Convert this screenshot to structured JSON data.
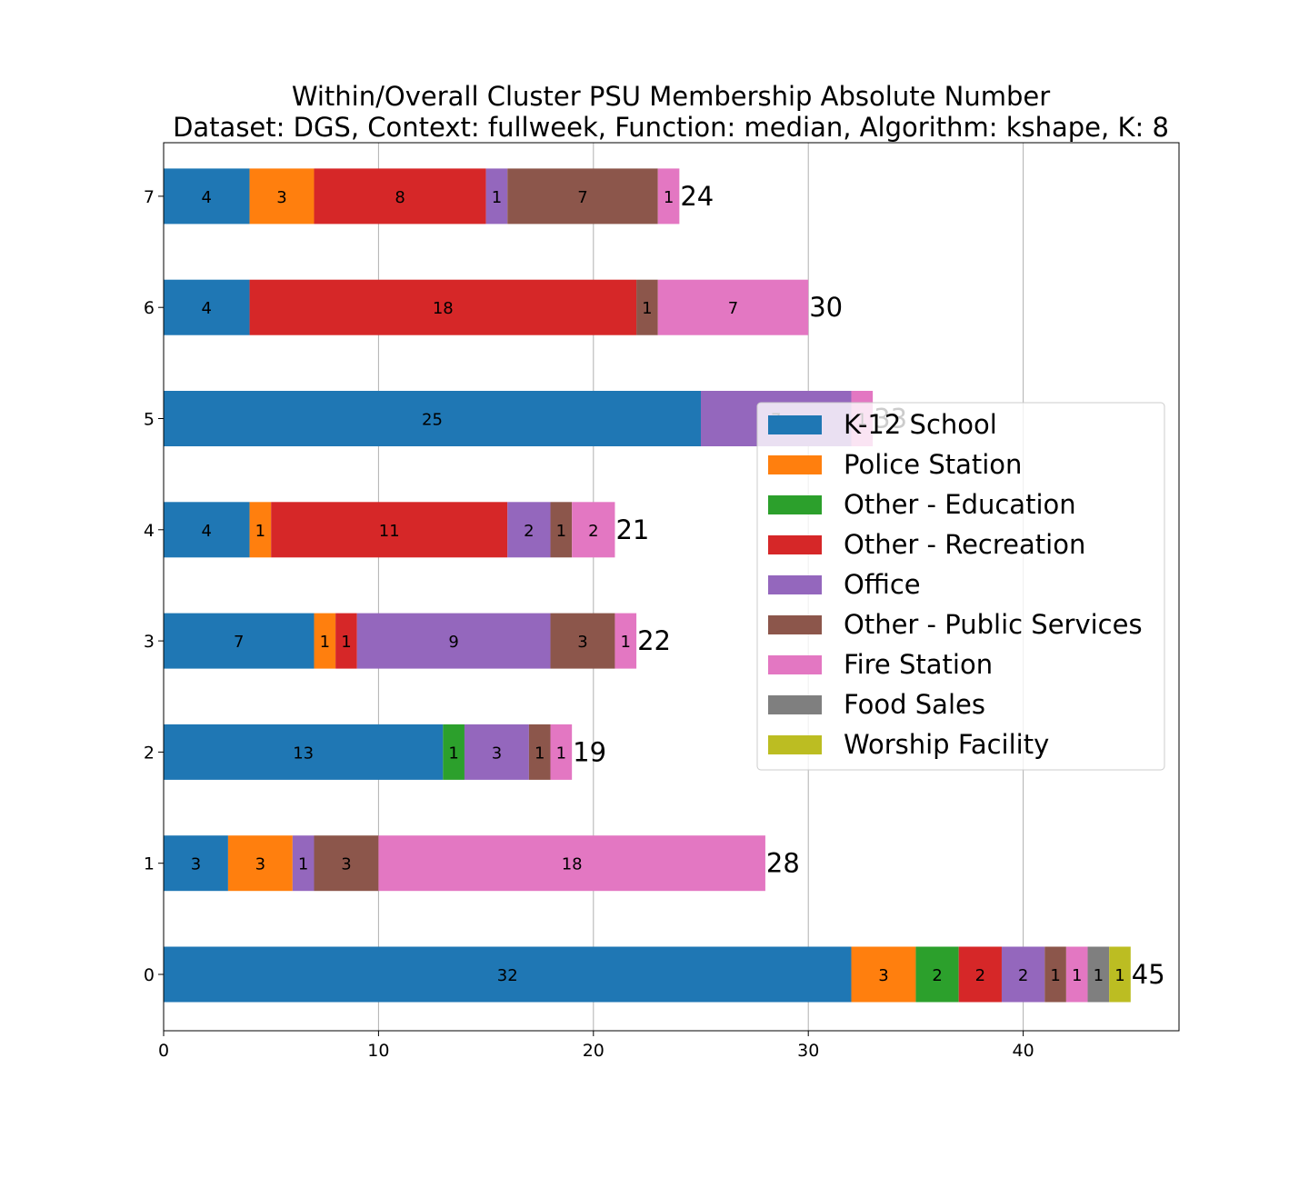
{
  "chart_data": {
    "type": "bar",
    "orientation": "horizontal",
    "stacked": true,
    "title": "Within/Overall Cluster PSU Membership Absolute Number",
    "subtitle": "Dataset: DGS, Context: fullweek, Function: median, Algorithm: kshape, K: 8",
    "xlabel": "",
    "ylabel": "",
    "xlim": [
      0,
      47.25
    ],
    "x_ticks": [
      "0",
      "10",
      "20",
      "30",
      "40"
    ],
    "x_tick_values": [
      0,
      10,
      20,
      30,
      40
    ],
    "categories": [
      "0",
      "1",
      "2",
      "3",
      "4",
      "5",
      "6",
      "7"
    ],
    "grid": "x",
    "legend_position": "right",
    "series": [
      {
        "name": "K-12 School",
        "color": "#1f77b4",
        "values": [
          32,
          3,
          13,
          7,
          4,
          25,
          4,
          4
        ]
      },
      {
        "name": "Police Station",
        "color": "#ff7f0e",
        "values": [
          3,
          3,
          0,
          1,
          1,
          0,
          0,
          3
        ]
      },
      {
        "name": "Other - Education",
        "color": "#2ca02c",
        "values": [
          2,
          0,
          1,
          0,
          0,
          0,
          0,
          0
        ]
      },
      {
        "name": "Other - Recreation",
        "color": "#d62728",
        "values": [
          2,
          0,
          0,
          1,
          11,
          0,
          18,
          8
        ]
      },
      {
        "name": "Office",
        "color": "#9467bd",
        "values": [
          2,
          1,
          3,
          9,
          2,
          7,
          0,
          1
        ]
      },
      {
        "name": "Other - Public Services",
        "color": "#8c564b",
        "values": [
          1,
          3,
          1,
          3,
          1,
          0,
          1,
          7
        ]
      },
      {
        "name": "Fire Station",
        "color": "#e377c2",
        "values": [
          1,
          18,
          1,
          1,
          2,
          1,
          7,
          1
        ]
      },
      {
        "name": "Food Sales",
        "color": "#7f7f7f",
        "values": [
          1,
          0,
          0,
          0,
          0,
          0,
          0,
          0
        ]
      },
      {
        "name": "Worship Facility",
        "color": "#bcbd22",
        "values": [
          1,
          0,
          0,
          0,
          0,
          0,
          0,
          0
        ]
      }
    ],
    "segment_labels": [
      [
        "32",
        "3",
        "2",
        "2",
        "2",
        "1",
        "1",
        "1",
        "1"
      ],
      [
        "3",
        "3",
        "",
        "",
        "1",
        "3",
        "18",
        "",
        ""
      ],
      [
        "13",
        "",
        "1",
        "",
        "3",
        "1",
        "1",
        "",
        ""
      ],
      [
        "7",
        "1",
        "",
        "1",
        "9",
        "3",
        "1",
        "",
        ""
      ],
      [
        "4",
        "1",
        "",
        "11",
        "2",
        "1",
        "2",
        "",
        ""
      ],
      [
        "25",
        "",
        "",
        "",
        "7",
        "",
        "1",
        "",
        ""
      ],
      [
        "4",
        "",
        "",
        "18",
        "",
        "1",
        "7",
        "",
        ""
      ],
      [
        "4",
        "3",
        "",
        "8",
        "1",
        "7",
        "1",
        "",
        ""
      ]
    ],
    "totals": [
      "45",
      "28",
      "19",
      "22",
      "21",
      "33",
      "30",
      "24"
    ]
  }
}
